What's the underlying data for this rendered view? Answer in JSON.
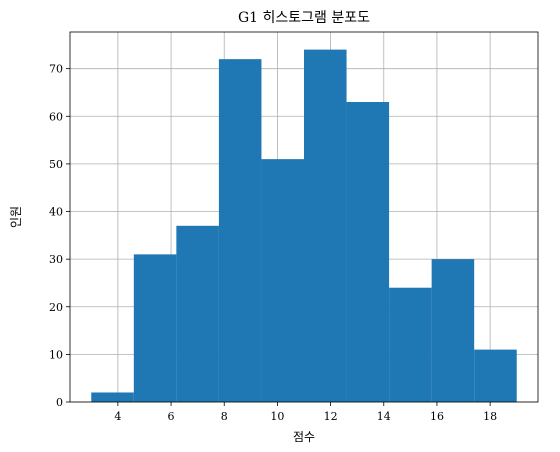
{
  "chart_data": {
    "type": "bar",
    "title": "G1 히스토그램 분포도",
    "xlabel": "점수",
    "ylabel": "인원",
    "bin_edges": [
      3.0,
      4.6,
      6.2,
      7.8,
      9.4,
      11.0,
      12.6,
      14.2,
      15.8,
      17.4,
      19.0
    ],
    "values": [
      2,
      31,
      37,
      72,
      51,
      74,
      63,
      24,
      30,
      11
    ],
    "xlim": [
      2.2,
      19.8
    ],
    "ylim": [
      0,
      77.7
    ],
    "xticks": [
      4,
      6,
      8,
      10,
      12,
      14,
      16,
      18
    ],
    "yticks": [
      0,
      10,
      20,
      30,
      40,
      50,
      60,
      70
    ],
    "grid": true,
    "bar_color": "#1f77b4",
    "grid_color": "#b0b0b0"
  }
}
